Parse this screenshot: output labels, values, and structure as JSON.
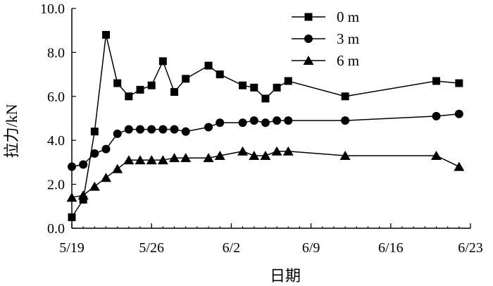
{
  "chart_data": {
    "type": "line",
    "xlabel": "日期",
    "ylabel": "拉力/kN",
    "x_unit": "date",
    "year_not_shown": true,
    "xlim": [
      "5/19",
      "6/23"
    ],
    "ylim": [
      0,
      10
    ],
    "x_ticks": [
      "5/19",
      "5/26",
      "6/2",
      "6/9",
      "6/16",
      "6/23"
    ],
    "y_ticks": [
      "0.0",
      "2.0",
      "4.0",
      "6.0",
      "8.0",
      "10.0"
    ],
    "grid": false,
    "legend_position": "top-right",
    "x": [
      "5/19",
      "5/20",
      "5/21",
      "5/22",
      "5/23",
      "5/24",
      "5/25",
      "5/26",
      "5/27",
      "5/28",
      "5/29",
      "5/31",
      "6/1",
      "6/3",
      "6/4",
      "6/5",
      "6/6",
      "6/7",
      "6/12",
      "6/20",
      "6/22"
    ],
    "series": [
      {
        "name": "0 m",
        "marker": "square",
        "values": [
          0.5,
          1.3,
          4.4,
          8.8,
          6.6,
          6.0,
          6.3,
          6.5,
          7.6,
          6.2,
          6.8,
          7.4,
          7.0,
          6.5,
          6.4,
          5.9,
          6.4,
          6.7,
          6.0,
          6.7,
          6.6
        ]
      },
      {
        "name": "3 m",
        "marker": "circle",
        "values": [
          2.8,
          2.9,
          3.4,
          3.6,
          4.3,
          4.5,
          4.5,
          4.5,
          4.5,
          4.5,
          4.4,
          4.6,
          4.8,
          4.8,
          4.9,
          4.8,
          4.9,
          4.9,
          4.9,
          5.1,
          5.2
        ]
      },
      {
        "name": "6 m",
        "marker": "triangle",
        "values": [
          1.4,
          1.5,
          1.9,
          2.3,
          2.7,
          3.1,
          3.1,
          3.1,
          3.1,
          3.2,
          3.2,
          3.2,
          3.3,
          3.5,
          3.3,
          3.3,
          3.5,
          3.5,
          3.3,
          3.3,
          2.8
        ]
      }
    ],
    "colors": {
      "line": "#000000",
      "marker": "#000000",
      "background": "#ffffff"
    }
  }
}
